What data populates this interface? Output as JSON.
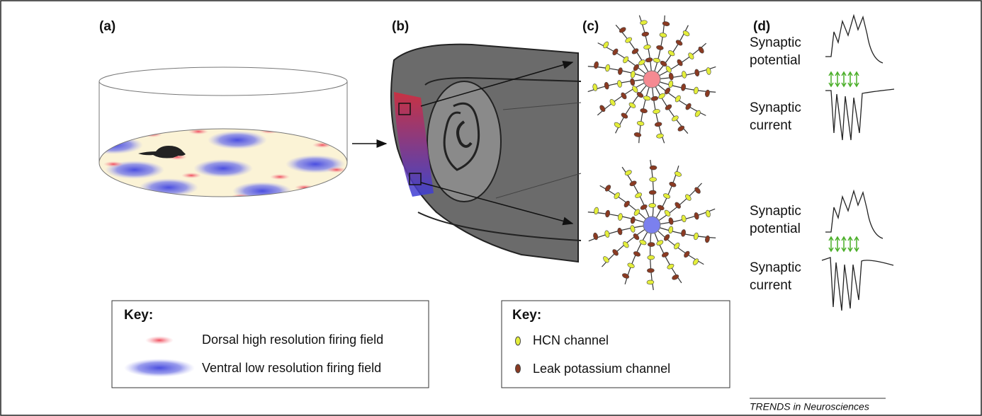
{
  "panels": {
    "a": "(a)",
    "b": "(b)",
    "c": "(c)",
    "d": "(d)"
  },
  "key_left": {
    "title": "Key:",
    "items": [
      "Dorsal high resolution firing field",
      "Ventral low resolution firing field"
    ]
  },
  "key_right": {
    "title": "Key:",
    "items": [
      "HCN channel",
      "Leak potassium channel"
    ]
  },
  "traces": {
    "top": {
      "potential": "Synaptic potential",
      "current": "Synaptic current"
    },
    "bottom": {
      "potential": "Synaptic potential",
      "current": "Synaptic current"
    }
  },
  "footer": "TRENDS in Neurosciences"
}
